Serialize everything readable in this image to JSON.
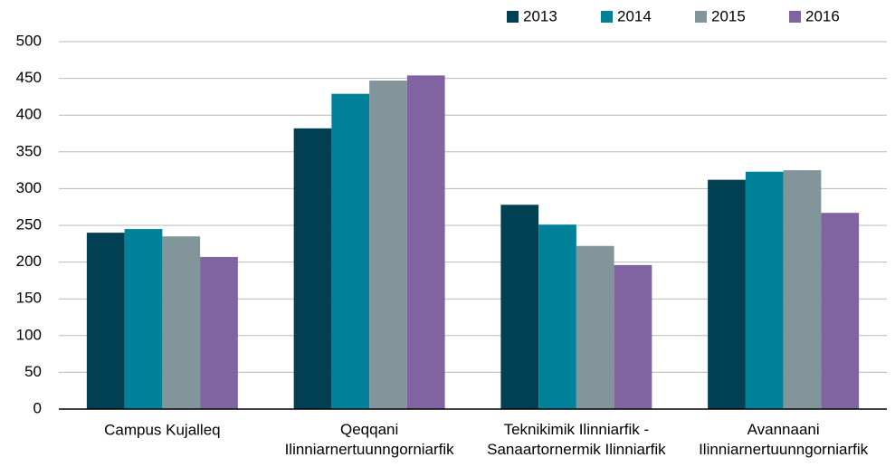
{
  "chart_data": {
    "type": "bar",
    "categories": [
      "Campus Kujalleq",
      "Qeqqani\nIlinniarnertuunngorniarfik",
      "Teknikimik Ilinniarfik -\nSanaartornermik Ilinniarfik",
      "Avannaani\nIlinniarnertuunngorniarfik"
    ],
    "series": [
      {
        "name": "2013",
        "color": "#004052",
        "values": [
          240,
          382,
          278,
          312
        ]
      },
      {
        "name": "2014",
        "color": "#00819a",
        "values": [
          245,
          429,
          251,
          323
        ]
      },
      {
        "name": "2015",
        "color": "#82959a",
        "values": [
          235,
          447,
          222,
          325
        ]
      },
      {
        "name": "2016",
        "color": "#8064a2",
        "values": [
          207,
          454,
          196,
          267
        ]
      }
    ],
    "ylim": [
      0,
      500
    ],
    "yticks": [
      0,
      50,
      100,
      150,
      200,
      250,
      300,
      350,
      400,
      450,
      500
    ],
    "grid": true,
    "legend": "top-right"
  }
}
